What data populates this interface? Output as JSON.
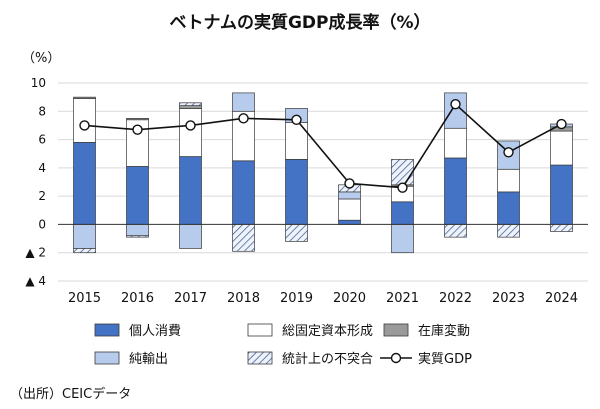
{
  "colors": {
    "personal": "#4472c4",
    "fixed": "#ffffff",
    "inventory": "#9a9a9a",
    "netexport": "#b7ccec",
    "discrepancy": "#dfe7f5",
    "stroke": "#3a3a3a",
    "line": "#111111"
  },
  "chart_data": {
    "type": "bar",
    "title": "ベトナムの実質GDP成長率（%）",
    "unit_label": "（%）",
    "xlabel": "",
    "ylabel": "",
    "source": "（出所）CEICデータ",
    "ylim": [
      -4,
      10
    ],
    "y_ticks": [
      {
        "value": 10,
        "label": "10"
      },
      {
        "value": 8,
        "label": "8"
      },
      {
        "value": 6,
        "label": "6"
      },
      {
        "value": 4,
        "label": "4"
      },
      {
        "value": 2,
        "label": "2"
      },
      {
        "value": 0,
        "label": "0"
      },
      {
        "value": -2,
        "label": "▲ 2"
      },
      {
        "value": -4,
        "label": "▲ 4"
      }
    ],
    "categories": [
      "2015",
      "2016",
      "2017",
      "2018",
      "2019",
      "2020",
      "2021",
      "2022",
      "2023",
      "2024"
    ],
    "series": [
      {
        "key": "personal",
        "name": "個人消費",
        "values": [
          5.8,
          4.1,
          4.8,
          4.5,
          4.6,
          0.3,
          1.6,
          4.7,
          2.3,
          4.2
        ]
      },
      {
        "key": "fixed",
        "name": "総固定資本形成",
        "values": [
          3.1,
          3.3,
          3.4,
          3.5,
          2.6,
          1.5,
          1.1,
          2.1,
          1.6,
          2.4
        ]
      },
      {
        "key": "inventory",
        "name": "在庫変動",
        "values": [
          0.1,
          0.1,
          0.2,
          0.0,
          0.0,
          0.0,
          0.1,
          0.0,
          0.0,
          0.3
        ]
      },
      {
        "key": "netexport",
        "name": "純輸出",
        "values": [
          -1.7,
          -0.8,
          -1.7,
          1.3,
          1.0,
          0.5,
          -2.0,
          2.5,
          2.0,
          0.2
        ]
      },
      {
        "key": "discrepancy",
        "name": "統計上の不突合",
        "values": [
          -0.3,
          -0.1,
          0.2,
          -1.9,
          -1.2,
          0.5,
          1.8,
          -0.9,
          -0.9,
          -0.5
        ]
      }
    ],
    "line": {
      "name": "実質GDP",
      "values": [
        7.0,
        6.7,
        7.0,
        7.5,
        7.4,
        2.9,
        2.6,
        8.5,
        5.1,
        7.1
      ]
    },
    "legend": [
      {
        "key": "personal",
        "label": "個人消費"
      },
      {
        "key": "fixed",
        "label": "総固定資本形成"
      },
      {
        "key": "inventory",
        "label": "在庫変動"
      },
      {
        "key": "netexport",
        "label": "純輸出"
      },
      {
        "key": "discrepancy",
        "label": "統計上の不突合"
      },
      {
        "key": "line",
        "label": "実質GDP"
      }
    ]
  }
}
